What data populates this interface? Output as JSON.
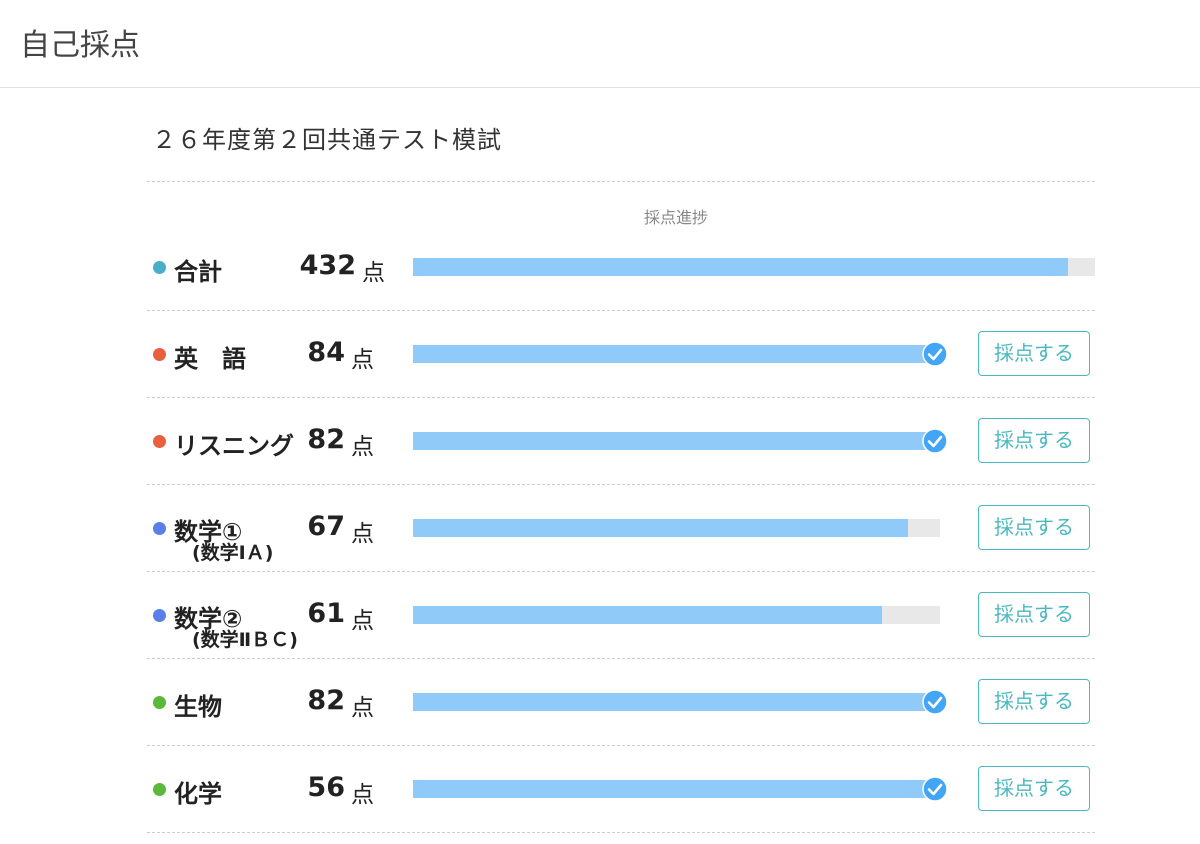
{
  "header": {
    "title": "自己採点"
  },
  "exam": {
    "title": "２６年度第２回共通テスト模試",
    "progress_label": "採点進捗",
    "unit": "点",
    "button_label": "採点する",
    "rows": [
      {
        "name": "合計",
        "score": 432,
        "progress": 96,
        "completed": false,
        "button": false,
        "dot_color": "#4aaec8"
      },
      {
        "name": "英　語",
        "score": 84,
        "progress": 100,
        "completed": true,
        "button": true,
        "dot_color": "#e8603c"
      },
      {
        "name": "リスニング",
        "score": 82,
        "progress": 100,
        "completed": true,
        "button": true,
        "dot_color": "#e8603c"
      },
      {
        "name": "数学①",
        "sub_name": "(数学ⅠＡ)",
        "score": 67,
        "progress": 94,
        "completed": false,
        "button": true,
        "dot_color": "#5b7fe8"
      },
      {
        "name": "数学②",
        "sub_name": "(数学ⅡＢＣ)",
        "score": 61,
        "progress": 89,
        "completed": false,
        "button": true,
        "dot_color": "#5b7fe8"
      },
      {
        "name": "生物",
        "score": 82,
        "progress": 100,
        "completed": true,
        "button": true,
        "dot_color": "#5bb83a"
      },
      {
        "name": "化学",
        "score": 56,
        "progress": 100,
        "completed": true,
        "button": true,
        "dot_color": "#5bb83a"
      }
    ]
  }
}
